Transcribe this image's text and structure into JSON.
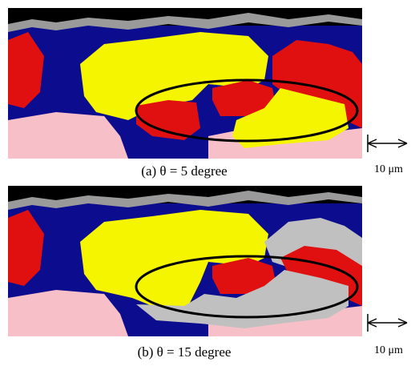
{
  "panels": [
    {
      "caption": "(a) θ = 5 degree",
      "scale_label": "10 μm"
    },
    {
      "caption": "(b) θ = 15 degree",
      "scale_label": "10 μm"
    }
  ]
}
